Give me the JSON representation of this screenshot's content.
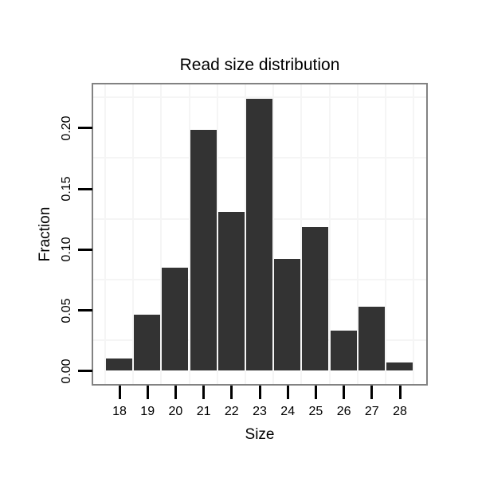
{
  "chart_data": {
    "type": "bar",
    "title": "Read size distribution",
    "xlabel": "Size",
    "ylabel": "Fraction",
    "categories": [
      "18",
      "19",
      "20",
      "21",
      "22",
      "23",
      "24",
      "25",
      "26",
      "27",
      "28"
    ],
    "values": [
      0.01,
      0.046,
      0.085,
      0.198,
      0.131,
      0.224,
      0.092,
      0.118,
      0.033,
      0.053,
      0.007
    ],
    "ylim": [
      -0.0105,
      0.2356
    ],
    "y_ticks": [
      0,
      0.05,
      0.1,
      0.15,
      0.2
    ],
    "y_tick_labels": [
      "0.00",
      "0.05",
      "0.10",
      "0.15",
      "0.20"
    ],
    "y_minor_gridlines": [
      0.025,
      0.075,
      0.125,
      0.175,
      0.225
    ],
    "grid": "minor-only",
    "legend": "none",
    "colors": {
      "bar": "#333333",
      "gridline": "#f5f5f5",
      "panel_border": "#828282",
      "tick": "#000000",
      "text": "#000000",
      "background": "#ffffff"
    }
  }
}
